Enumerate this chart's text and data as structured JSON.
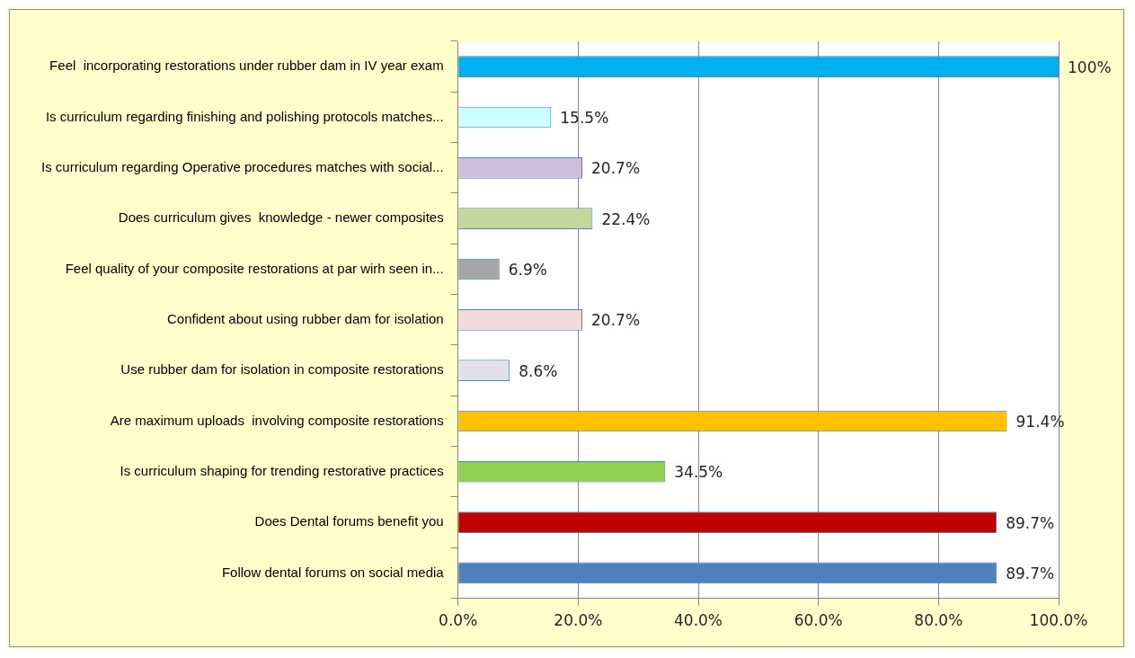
{
  "chart_data": {
    "type": "bar",
    "orientation": "horizontal",
    "categories": [
      "Feel  incorporating restorations under rubber dam in IV year exam",
      "Is curriculum regarding finishing and polishing protocols matches...",
      "Is curriculum regarding Operative procedures matches with social...",
      "Does curriculum gives  knowledge - newer composites",
      "Feel quality of your composite restorations at par wirh seen in...",
      "Confident about using rubber dam for isolation",
      "Use rubber dam for isolation in composite restorations",
      "Are maximum uploads  involving composite restorations",
      "Is curriculum shaping for trending restorative practices",
      "Does Dental forums benefit you",
      "Follow dental forums on social media"
    ],
    "values": [
      100,
      15.5,
      20.7,
      22.4,
      6.9,
      20.7,
      8.6,
      91.4,
      34.5,
      89.7,
      89.7
    ],
    "value_labels": [
      "100%",
      "15.5%",
      "20.7%",
      "22.4%",
      "6.9%",
      "20.7%",
      "8.6%",
      "91.4%",
      "34.5%",
      "89.7%",
      "89.7%"
    ],
    "colors": [
      "#00b0f0",
      "#ccffff",
      "#ccc0da",
      "#c4d79b",
      "#a6a6a6",
      "#f2dcdb",
      "#e4dfec",
      "#ffc000",
      "#92d050",
      "#c00000",
      "#4f81bd"
    ],
    "xlim": [
      0,
      100
    ],
    "xticks": [
      {
        "value": 0,
        "label": "0.0%"
      },
      {
        "value": 20,
        "label": "20.0%"
      },
      {
        "value": 40,
        "label": "40.0%"
      },
      {
        "value": 60,
        "label": "60.0%"
      },
      {
        "value": 80,
        "label": "80.0%"
      },
      {
        "value": 100,
        "label": "100.0%"
      }
    ],
    "grid": "x",
    "legend": false
  }
}
